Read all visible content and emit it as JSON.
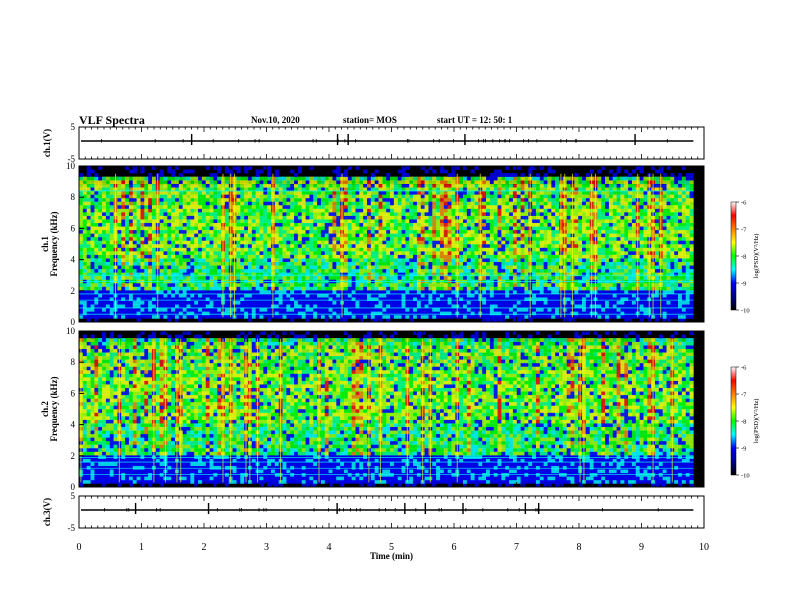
{
  "header": {
    "title": "VLF Spectra",
    "date": "Nov.10, 2020",
    "station": "station= MOS",
    "start": "start  UT =   12: 50: 1"
  },
  "chart_data": [
    {
      "type": "line",
      "name": "ch1-waveform",
      "ylabel": "ch.1(V)",
      "ylim": [
        -5,
        5
      ],
      "yticks": [
        "5",
        "-5"
      ],
      "xlim": [
        0,
        9.83
      ],
      "values": [
        0,
        0
      ],
      "color": "#000000"
    },
    {
      "type": "heatmap",
      "name": "ch1-spectrogram",
      "ylabel": "ch.1\nFrequency (kHz)",
      "ylim": [
        0,
        10
      ],
      "yticks": [
        "0",
        "2",
        "4",
        "6",
        "8",
        "10"
      ],
      "xlim": [
        0,
        9.83
      ],
      "colorbar": {
        "label": "log(PSD)(V²/Hz)",
        "range": [
          -10,
          -6
        ],
        "ticks": [
          "-6",
          "-7",
          "-8",
          "-9",
          "-10"
        ]
      }
    },
    {
      "type": "heatmap",
      "name": "ch2-spectrogram",
      "ylabel": "ch.2\nFrequency (kHz)",
      "ylim": [
        0,
        10
      ],
      "yticks": [
        "0",
        "2",
        "4",
        "6",
        "8",
        "10"
      ],
      "xlim": [
        0,
        9.83
      ],
      "colorbar": {
        "label": "log(PSD)(V²/Hz)",
        "range": [
          -10,
          -6
        ],
        "ticks": [
          "-6",
          "-7",
          "-8",
          "-9",
          "-10"
        ]
      }
    },
    {
      "type": "line",
      "name": "ch3-waveform",
      "ylabel": "ch.3(V)",
      "ylim": [
        -5,
        5
      ],
      "yticks": [
        "5",
        "-5"
      ],
      "xlim": [
        0,
        9.83
      ],
      "values": [
        0,
        0
      ],
      "color": "#000000"
    }
  ],
  "xaxis": {
    "label": "Time (min)",
    "range": [
      0,
      10
    ],
    "ticks": [
      "0",
      "1",
      "2",
      "3",
      "4",
      "5",
      "6",
      "7",
      "8",
      "9",
      "10"
    ]
  },
  "colormap": [
    "#000000",
    "#00008b",
    "#0000ff",
    "#00ffff",
    "#00ff00",
    "#ffff00",
    "#ff8000",
    "#ff0000",
    "#ffffff"
  ]
}
